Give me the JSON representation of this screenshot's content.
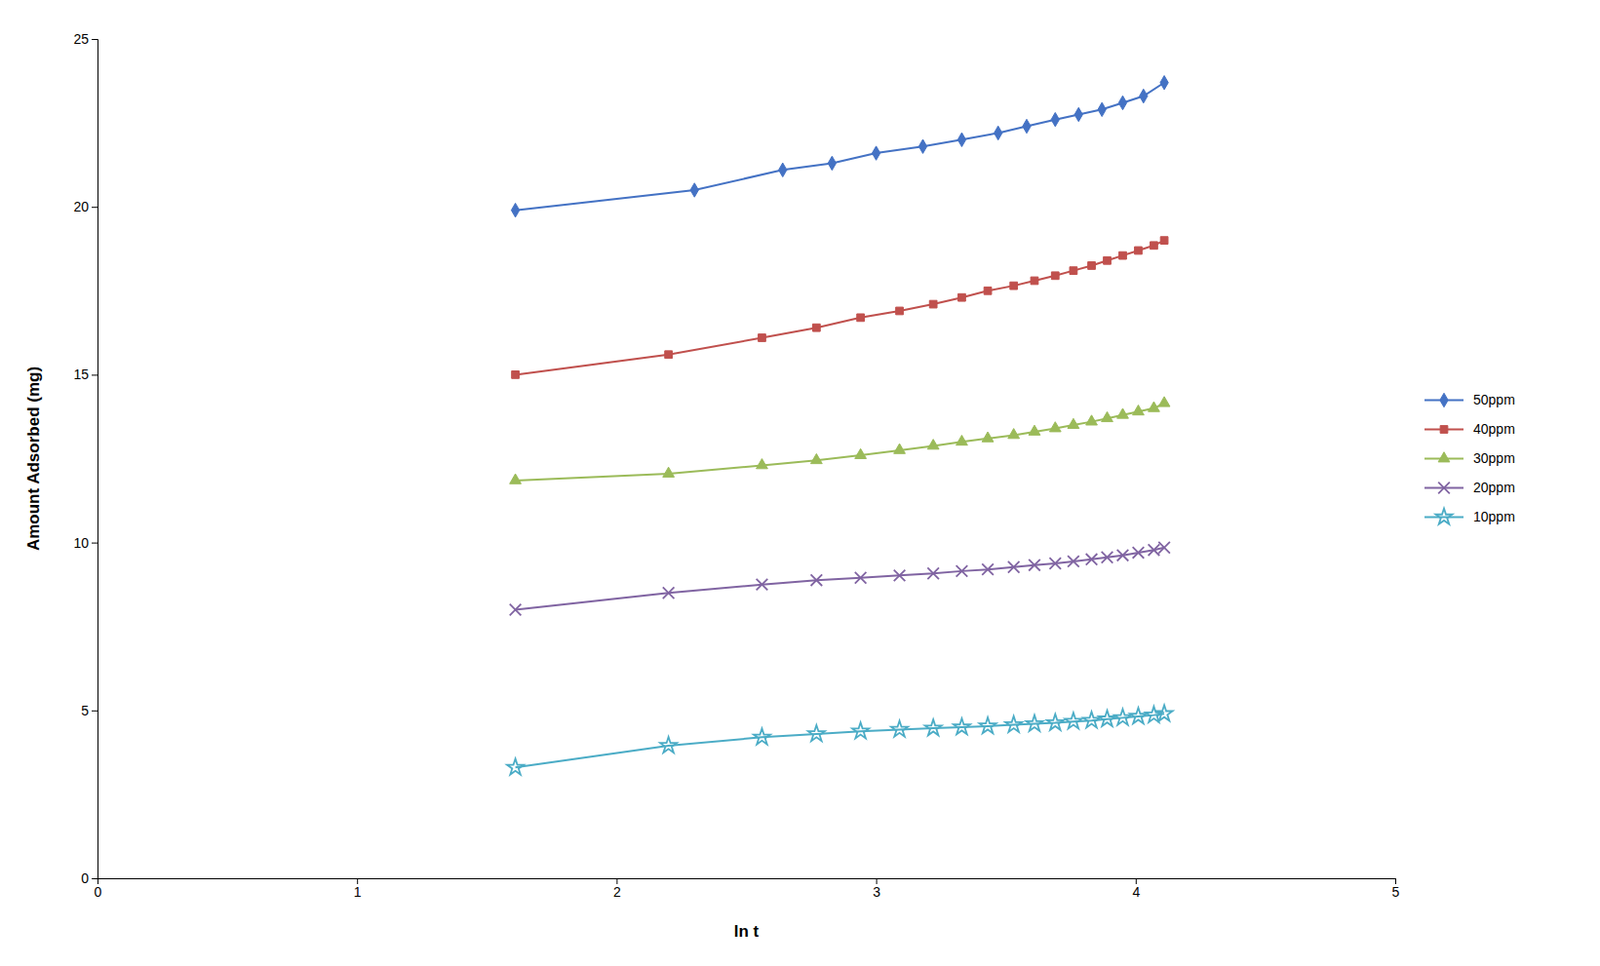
{
  "chart_data": {
    "type": "line",
    "xlabel": "ln t",
    "ylabel": "Amount Adsorbed (mg)",
    "xlim": [
      0,
      5
    ],
    "ylim": [
      0,
      25
    ],
    "xticks": [
      0,
      1,
      2,
      3,
      4,
      5
    ],
    "yticks": [
      0,
      5,
      10,
      15,
      20,
      25
    ],
    "grid": false,
    "legend": "right",
    "series": [
      {
        "name": "50ppm",
        "color": "#4472C4",
        "marker": "diamond",
        "x": [
          1.61,
          2.3,
          2.64,
          2.83,
          3.0,
          3.18,
          3.33,
          3.47,
          3.58,
          3.69,
          3.78,
          3.87,
          3.95,
          4.03,
          4.11
        ],
        "values": [
          19.9,
          20.5,
          21.1,
          21.3,
          21.6,
          21.8,
          22.0,
          22.2,
          22.4,
          22.6,
          22.75,
          22.9,
          23.1,
          23.3,
          23.7
        ]
      },
      {
        "name": "40ppm",
        "color": "#C0504D",
        "marker": "square",
        "x": [
          1.61,
          2.2,
          2.56,
          2.77,
          2.94,
          3.09,
          3.22,
          3.33,
          3.43,
          3.53,
          3.61,
          3.69,
          3.76,
          3.83,
          3.89,
          3.95,
          4.01,
          4.07,
          4.11
        ],
        "values": [
          15.0,
          15.6,
          16.1,
          16.4,
          16.7,
          16.9,
          17.1,
          17.3,
          17.5,
          17.65,
          17.8,
          17.95,
          18.1,
          18.25,
          18.4,
          18.55,
          18.7,
          18.85,
          19.0
        ]
      },
      {
        "name": "30ppm",
        "color": "#9BBB59",
        "marker": "triangle",
        "x": [
          1.61,
          2.2,
          2.56,
          2.77,
          2.94,
          3.09,
          3.22,
          3.33,
          3.43,
          3.53,
          3.61,
          3.69,
          3.76,
          3.83,
          3.89,
          3.95,
          4.01,
          4.07,
          4.11
        ],
        "values": [
          11.85,
          12.05,
          12.3,
          12.45,
          12.6,
          12.75,
          12.88,
          13.0,
          13.1,
          13.2,
          13.3,
          13.4,
          13.5,
          13.6,
          13.7,
          13.8,
          13.9,
          14.0,
          14.15
        ]
      },
      {
        "name": "20ppm",
        "color": "#8064A2",
        "marker": "x",
        "x": [
          1.61,
          2.2,
          2.56,
          2.77,
          2.94,
          3.09,
          3.22,
          3.33,
          3.43,
          3.53,
          3.61,
          3.69,
          3.76,
          3.83,
          3.89,
          3.95,
          4.01,
          4.07,
          4.11
        ],
        "values": [
          8.0,
          8.5,
          8.75,
          8.88,
          8.95,
          9.02,
          9.08,
          9.15,
          9.2,
          9.27,
          9.33,
          9.38,
          9.44,
          9.5,
          9.56,
          9.62,
          9.7,
          9.78,
          9.85
        ]
      },
      {
        "name": "10ppm",
        "color": "#4BACC6",
        "marker": "star",
        "x": [
          1.61,
          2.2,
          2.56,
          2.77,
          2.94,
          3.09,
          3.22,
          3.33,
          3.43,
          3.53,
          3.61,
          3.69,
          3.76,
          3.83,
          3.89,
          3.95,
          4.01,
          4.07,
          4.11
        ],
        "values": [
          3.3,
          3.95,
          4.2,
          4.3,
          4.38,
          4.43,
          4.47,
          4.5,
          4.53,
          4.57,
          4.6,
          4.63,
          4.67,
          4.7,
          4.74,
          4.78,
          4.82,
          4.86,
          4.9
        ]
      }
    ]
  }
}
